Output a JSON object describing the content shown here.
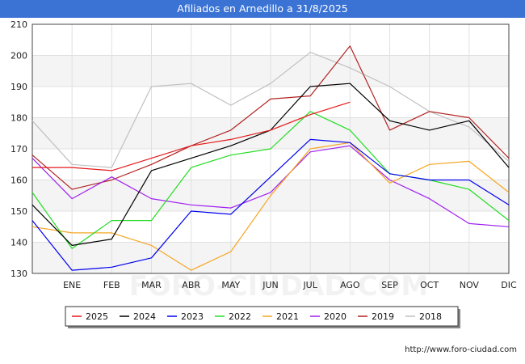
{
  "chart_data": {
    "type": "line",
    "title": "Afiliados en Arnedillo a 31/8/2025",
    "categories": [
      "",
      "ENE",
      "FEB",
      "MAR",
      "ABR",
      "MAY",
      "JUN",
      "JUL",
      "AGO",
      "SEP",
      "OCT",
      "NOV",
      "DIC"
    ],
    "ylim": [
      130,
      210
    ],
    "yticks": [
      130,
      140,
      150,
      160,
      170,
      180,
      190,
      200,
      210
    ],
    "grid": true,
    "legend_position": "bottom",
    "watermark": "FORO-CIUDAD.COM",
    "series": [
      {
        "name": "2025",
        "color": "#e41a1c",
        "values": [
          164,
          164,
          163,
          167,
          171,
          173,
          176,
          181,
          185,
          null,
          null,
          null,
          null
        ]
      },
      {
        "name": "2024",
        "color": "#000000",
        "values": [
          152,
          139,
          141,
          163,
          167,
          171,
          176,
          190,
          191,
          179,
          176,
          179,
          164
        ]
      },
      {
        "name": "2023",
        "color": "#0000ee",
        "values": [
          147,
          131,
          132,
          135,
          150,
          149,
          161,
          173,
          172,
          162,
          160,
          160,
          152
        ]
      },
      {
        "name": "2022",
        "color": "#22dd22",
        "values": [
          156,
          138,
          147,
          147,
          164,
          168,
          170,
          182,
          176,
          162,
          160,
          157,
          147
        ]
      },
      {
        "name": "2021",
        "color": "#f5a623",
        "values": [
          145,
          143,
          143,
          139,
          131,
          137,
          155,
          170,
          172,
          159,
          165,
          166,
          156
        ]
      },
      {
        "name": "2020",
        "color": "#a020f0",
        "values": [
          167,
          154,
          161,
          154,
          152,
          151,
          156,
          169,
          171,
          160,
          154,
          146,
          145
        ]
      },
      {
        "name": "2019",
        "color": "#b22222",
        "values": [
          168,
          157,
          160,
          165,
          171,
          176,
          186,
          187,
          203,
          176,
          182,
          180,
          167
        ]
      },
      {
        "name": "2018",
        "color": "#c0c0c0",
        "values": [
          179,
          165,
          164,
          190,
          191,
          184,
          191,
          201,
          196,
          190,
          182,
          177,
          166
        ]
      }
    ]
  },
  "source": "http://www.foro-ciudad.com"
}
